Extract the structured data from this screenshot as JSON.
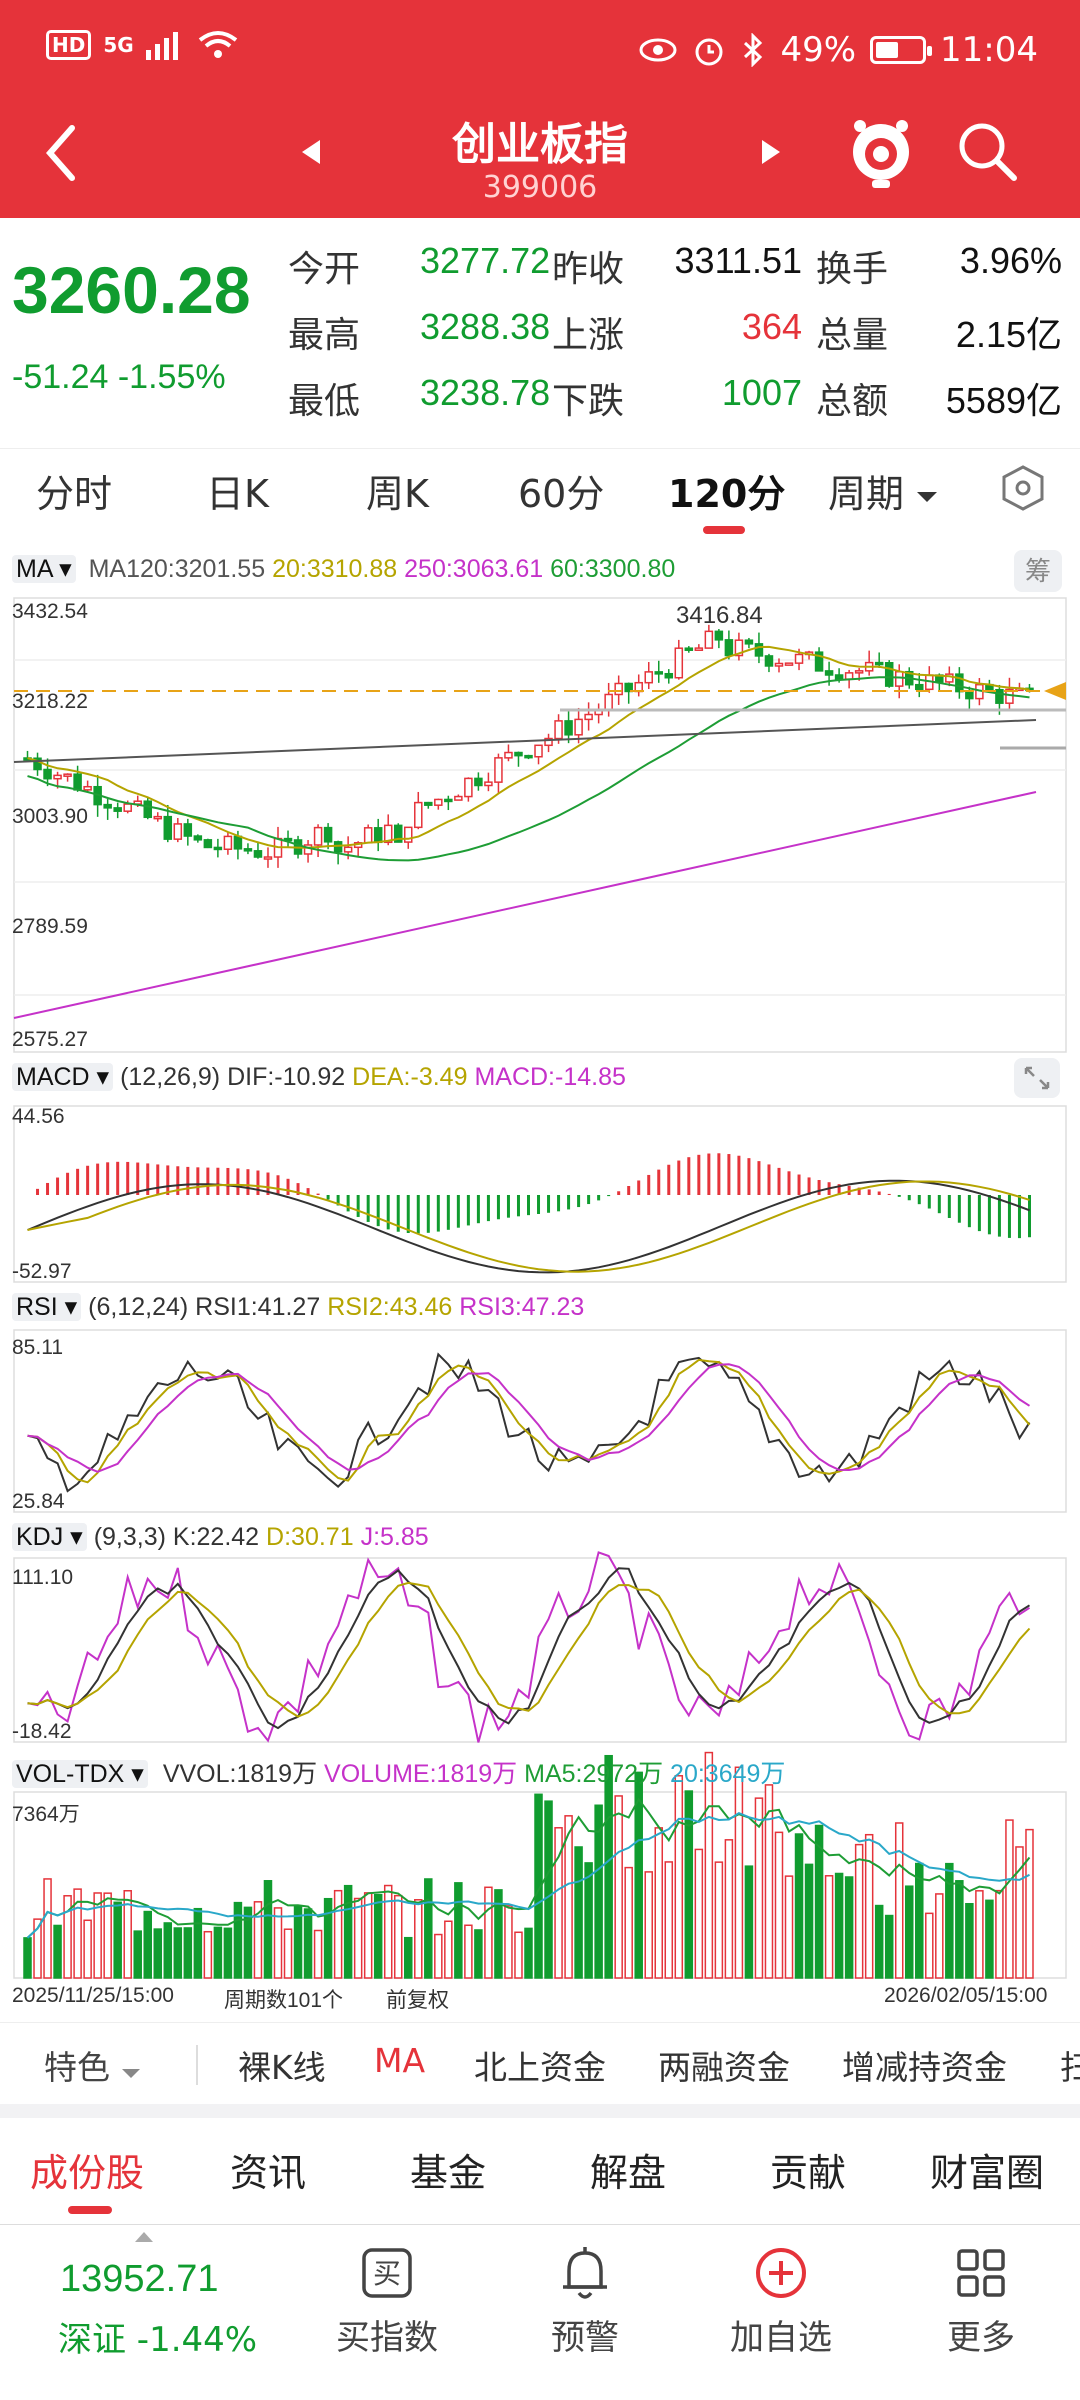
{
  "status_bar": {
    "hd": "HD",
    "network": "5G",
    "battery": "49%",
    "time": "11:04"
  },
  "header": {
    "title": "创业板指",
    "code": "399006"
  },
  "quote": {
    "price": "3260.28",
    "change": "-51.24",
    "change_pct": "-1.55%",
    "fields": [
      {
        "label": "今开",
        "value": "3277.72",
        "color": "green"
      },
      {
        "label": "昨收",
        "value": "3311.51",
        "color": "dark"
      },
      {
        "label": "换手",
        "value": "3.96%",
        "color": "dark"
      },
      {
        "label": "最高",
        "value": "3288.38",
        "color": "green"
      },
      {
        "label": "上涨",
        "value": "364",
        "color": "red"
      },
      {
        "label": "总量",
        "value": "2.15亿",
        "color": "dark"
      },
      {
        "label": "最低",
        "value": "3238.78",
        "color": "green"
      },
      {
        "label": "下跌",
        "value": "1007",
        "color": "green"
      },
      {
        "label": "总额",
        "value": "5589亿",
        "color": "dark"
      }
    ]
  },
  "period_tabs": [
    "分时",
    "日K",
    "周K",
    "60分",
    "120分",
    "周期"
  ],
  "active_period": "120分",
  "chart": {
    "ma_button": "MA",
    "ma_text": {
      "ma120": "MA120:3201.55",
      "ma20": "20:3310.88",
      "ma250": "250:3063.61",
      "ma60": "60:3300.80"
    },
    "chip_button": "筹",
    "price_ticks": [
      "3432.54",
      "3218.22",
      "3003.90",
      "2789.59",
      "2575.27"
    ],
    "high_mark": "3416.84",
    "macd": {
      "name": "MACD",
      "params": "(12,26,9)",
      "dif": "DIF:-10.92",
      "dea": "DEA:-3.49",
      "macd": "MACD:-14.85",
      "top": "44.56",
      "bottom": "-52.97"
    },
    "rsi": {
      "name": "RSI",
      "params": "(6,12,24)",
      "rsi1": "RSI1:41.27",
      "rsi2": "RSI2:43.46",
      "rsi3": "RSI3:47.23",
      "top": "85.11",
      "bottom": "25.84"
    },
    "kdj": {
      "name": "KDJ",
      "params": "(9,3,3)",
      "k": "K:22.42",
      "d": "D:30.71",
      "j": "J:5.85",
      "top": "111.10",
      "bottom": "-18.42"
    },
    "vol": {
      "name": "VOL-TDX",
      "vvol": "VVOL:1819万",
      "volume": "VOLUME:1819万",
      "ma5": "MA5:2972万",
      "ma20": "20:3649万",
      "top": "7364万"
    },
    "start_date": "2025/11/25/15:00",
    "period_count": "周期数101个",
    "adjust": "前复权",
    "end_date": "2026/02/05/15:00"
  },
  "feature_tabs": [
    "特色",
    "裸K线",
    "MA",
    "北上资金",
    "两融资金",
    "增减持资金",
    "扫"
  ],
  "content_tabs": [
    "成份股",
    "资讯",
    "基金",
    "解盘",
    "贡献",
    "财富圈"
  ],
  "bottom": {
    "index_value": "13952.71",
    "index_label": "深证 -1.44%",
    "nav": [
      {
        "label": "买指数",
        "icon": "buy-icon"
      },
      {
        "label": "预警",
        "icon": "bell-icon"
      },
      {
        "label": "加自选",
        "icon": "add-circle-icon"
      },
      {
        "label": "更多",
        "icon": "grid-icon"
      }
    ]
  },
  "colors": {
    "brand_red": "#e5333a",
    "up": "#e5333a",
    "down": "#109c2f"
  }
}
